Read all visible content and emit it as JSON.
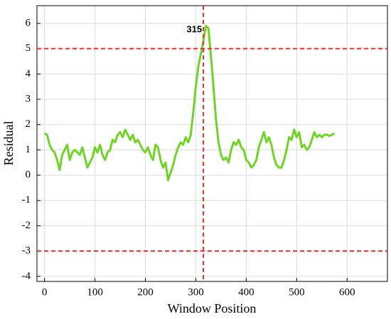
{
  "chart_data": {
    "type": "line",
    "xlabel": "Window Position",
    "ylabel": "Residual",
    "xlim": [
      -15,
      680
    ],
    "ylim": [
      -4.2,
      6.7
    ],
    "xticks": [
      0,
      100,
      200,
      300,
      400,
      500,
      600
    ],
    "yticks": [
      -4,
      -3,
      -2,
      -1,
      0,
      1,
      2,
      3,
      4,
      5,
      6
    ],
    "grid": true,
    "color": "#6fd426",
    "hlines": [
      5,
      -3
    ],
    "vline": 315,
    "ref_color": "#e8332a",
    "x": [
      0,
      5,
      10,
      15,
      20,
      25,
      30,
      35,
      40,
      45,
      50,
      55,
      60,
      65,
      70,
      75,
      80,
      85,
      90,
      95,
      100,
      105,
      110,
      115,
      120,
      125,
      130,
      135,
      140,
      145,
      150,
      155,
      160,
      165,
      170,
      175,
      180,
      185,
      190,
      195,
      200,
      205,
      210,
      215,
      220,
      225,
      230,
      235,
      240,
      245,
      250,
      255,
      260,
      265,
      270,
      275,
      280,
      285,
      290,
      295,
      300,
      305,
      310,
      315,
      320,
      325,
      330,
      335,
      340,
      345,
      350,
      355,
      360,
      365,
      370,
      375,
      380,
      385,
      390,
      395,
      400,
      405,
      410,
      415,
      420,
      425,
      430,
      435,
      440,
      445,
      450,
      455,
      460,
      465,
      470,
      475,
      480,
      485,
      490,
      495,
      500,
      505,
      510,
      515,
      520,
      525,
      530,
      535,
      540,
      545,
      550,
      555,
      560,
      565,
      570,
      575
    ],
    "values": [
      1.65,
      1.6,
      1.2,
      1.0,
      0.9,
      0.6,
      0.2,
      0.8,
      1.0,
      1.2,
      0.6,
      0.9,
      1.0,
      0.9,
      0.8,
      1.1,
      0.7,
      0.3,
      0.5,
      0.7,
      1.1,
      0.9,
      1.2,
      0.8,
      0.6,
      0.9,
      1.0,
      1.4,
      1.3,
      1.6,
      1.7,
      1.5,
      1.8,
      1.6,
      1.4,
      1.6,
      1.3,
      1.4,
      1.2,
      1.0,
      0.9,
      1.1,
      0.8,
      0.6,
      1.2,
      1.1,
      0.6,
      0.3,
      0.5,
      -0.2,
      0.1,
      0.4,
      0.8,
      1.1,
      1.3,
      1.2,
      1.5,
      1.3,
      1.6,
      2.5,
      3.5,
      4.3,
      4.8,
      5.3,
      5.9,
      5.8,
      4.7,
      3.5,
      2.2,
      1.3,
      0.8,
      0.6,
      0.7,
      0.5,
      1.0,
      1.3,
      1.2,
      1.4,
      1.1,
      1.0,
      0.6,
      0.5,
      0.3,
      0.4,
      0.6,
      1.1,
      1.4,
      1.7,
      1.3,
      1.5,
      1.2,
      0.7,
      0.4,
      0.3,
      0.3,
      0.6,
      1.0,
      1.5,
      1.4,
      1.8,
      1.5,
      1.7,
      1.1,
      1.2,
      1.0,
      1.1,
      1.4,
      1.7,
      1.5,
      1.6,
      1.5,
      1.6,
      1.6,
      1.55,
      1.6,
      1.65
    ]
  }
}
